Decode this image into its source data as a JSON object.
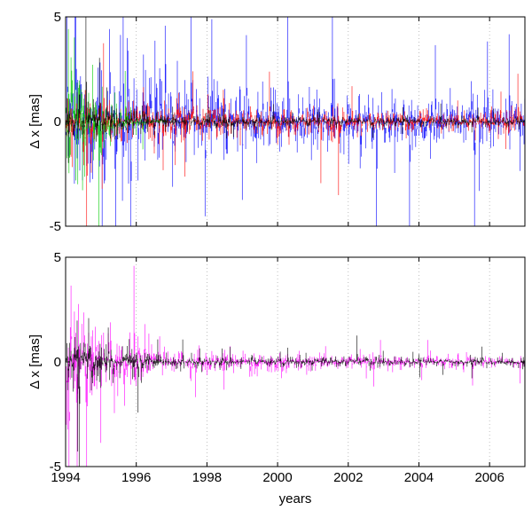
{
  "chart_data": [
    {
      "type": "line",
      "title": "",
      "xlabel": "",
      "ylabel": "Δ x [mas]",
      "xlim": [
        1994,
        2007
      ],
      "ylim": [
        -5,
        5
      ],
      "x_ticks": [
        1994,
        1996,
        1998,
        2000,
        2002,
        2004,
        2006
      ],
      "y_ticks": [
        -5,
        0,
        5
      ],
      "y_tick_labels": [
        "-5",
        "0",
        "5"
      ],
      "grid": "x-dotted",
      "sampling": "approx. weekly",
      "series": [
        {
          "color": "#0000ff",
          "amplitude_by_year": [
            [
              1994,
              3.5
            ],
            [
              1995,
              3.2
            ],
            [
              1996,
              2.4
            ],
            [
              1997,
              2.0
            ],
            [
              1999,
              1.8
            ],
            [
              2002,
              1.3
            ],
            [
              2007,
              1.1
            ]
          ]
        },
        {
          "color": "#ff0000",
          "amplitude_by_year": [
            [
              1994,
              1.5
            ],
            [
              1996,
              1.0
            ],
            [
              1998,
              0.8
            ],
            [
              2002,
              0.6
            ],
            [
              2007,
              0.5
            ]
          ]
        },
        {
          "color": "#00cc00",
          "amplitude_by_year": [
            [
              1994,
              3.8
            ],
            [
              1994.6,
              2.5
            ],
            [
              1995.3,
              1.0
            ],
            [
              1996,
              0.4
            ],
            [
              1997,
              0.0
            ]
          ]
        },
        {
          "color": "#000000",
          "amplitude_by_year": [
            [
              1994,
              1.2
            ],
            [
              1995.5,
              0.7
            ],
            [
              1997,
              0.35
            ],
            [
              2007,
              0.2
            ]
          ]
        }
      ]
    },
    {
      "type": "line",
      "title": "",
      "xlabel": "years",
      "ylabel": "Δ x [mas]",
      "xlim": [
        1994,
        2007
      ],
      "ylim": [
        -5,
        5
      ],
      "x_ticks": [
        1994,
        1996,
        1998,
        2000,
        2002,
        2004,
        2006
      ],
      "x_tick_labels": [
        "1994",
        "1996",
        "1998",
        "2000",
        "2002",
        "2004",
        "2006"
      ],
      "y_ticks": [
        -5,
        0,
        5
      ],
      "y_tick_labels": [
        "-5",
        "0",
        "5"
      ],
      "grid": "x-dotted",
      "sampling": "approx. weekly",
      "series": [
        {
          "color": "#ff00ff",
          "amplitude_by_year": [
            [
              1994,
              2.8
            ],
            [
              1995,
              2.0
            ],
            [
              1996,
              1.3
            ],
            [
              1997,
              0.6
            ],
            [
              2000,
              0.5
            ],
            [
              2003,
              0.35
            ],
            [
              2007,
              0.3
            ]
          ]
        },
        {
          "color": "#000000",
          "amplitude_by_year": [
            [
              1994,
              1.3
            ],
            [
              1995,
              1.0
            ],
            [
              1996,
              0.6
            ],
            [
              1997,
              0.3
            ],
            [
              2007,
              0.2
            ]
          ]
        }
      ]
    }
  ]
}
